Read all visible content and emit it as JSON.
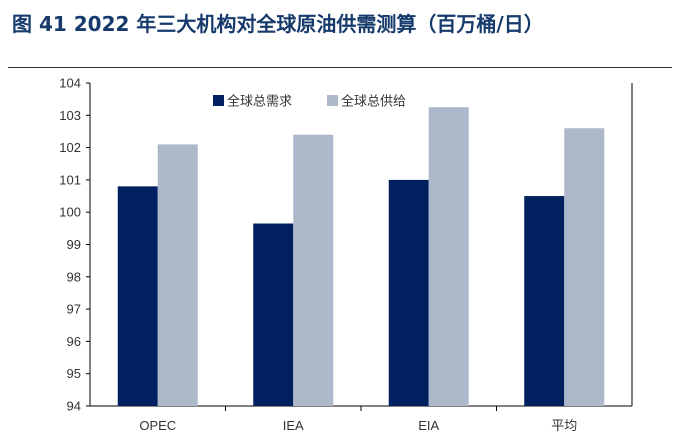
{
  "figure_title": "图 41  2022 年三大机构对全球原油供需测算（百万桶/日）",
  "chart_data": {
    "type": "bar",
    "title": "",
    "xlabel": "",
    "ylabel": "",
    "ylim": [
      94,
      104
    ],
    "yticks": [
      94,
      95,
      96,
      97,
      98,
      99,
      100,
      101,
      102,
      103,
      104
    ],
    "categories": [
      "OPEC",
      "IEA",
      "EIA",
      "平均"
    ],
    "series": [
      {
        "name": "全球总需求",
        "color": "#002060",
        "values": [
          100.8,
          99.65,
          101.0,
          100.5
        ]
      },
      {
        "name": "全球总供给",
        "color": "#adb9ca",
        "values": [
          102.1,
          102.4,
          103.25,
          102.6
        ]
      }
    ],
    "grid": false,
    "legend_position": "top-center"
  }
}
